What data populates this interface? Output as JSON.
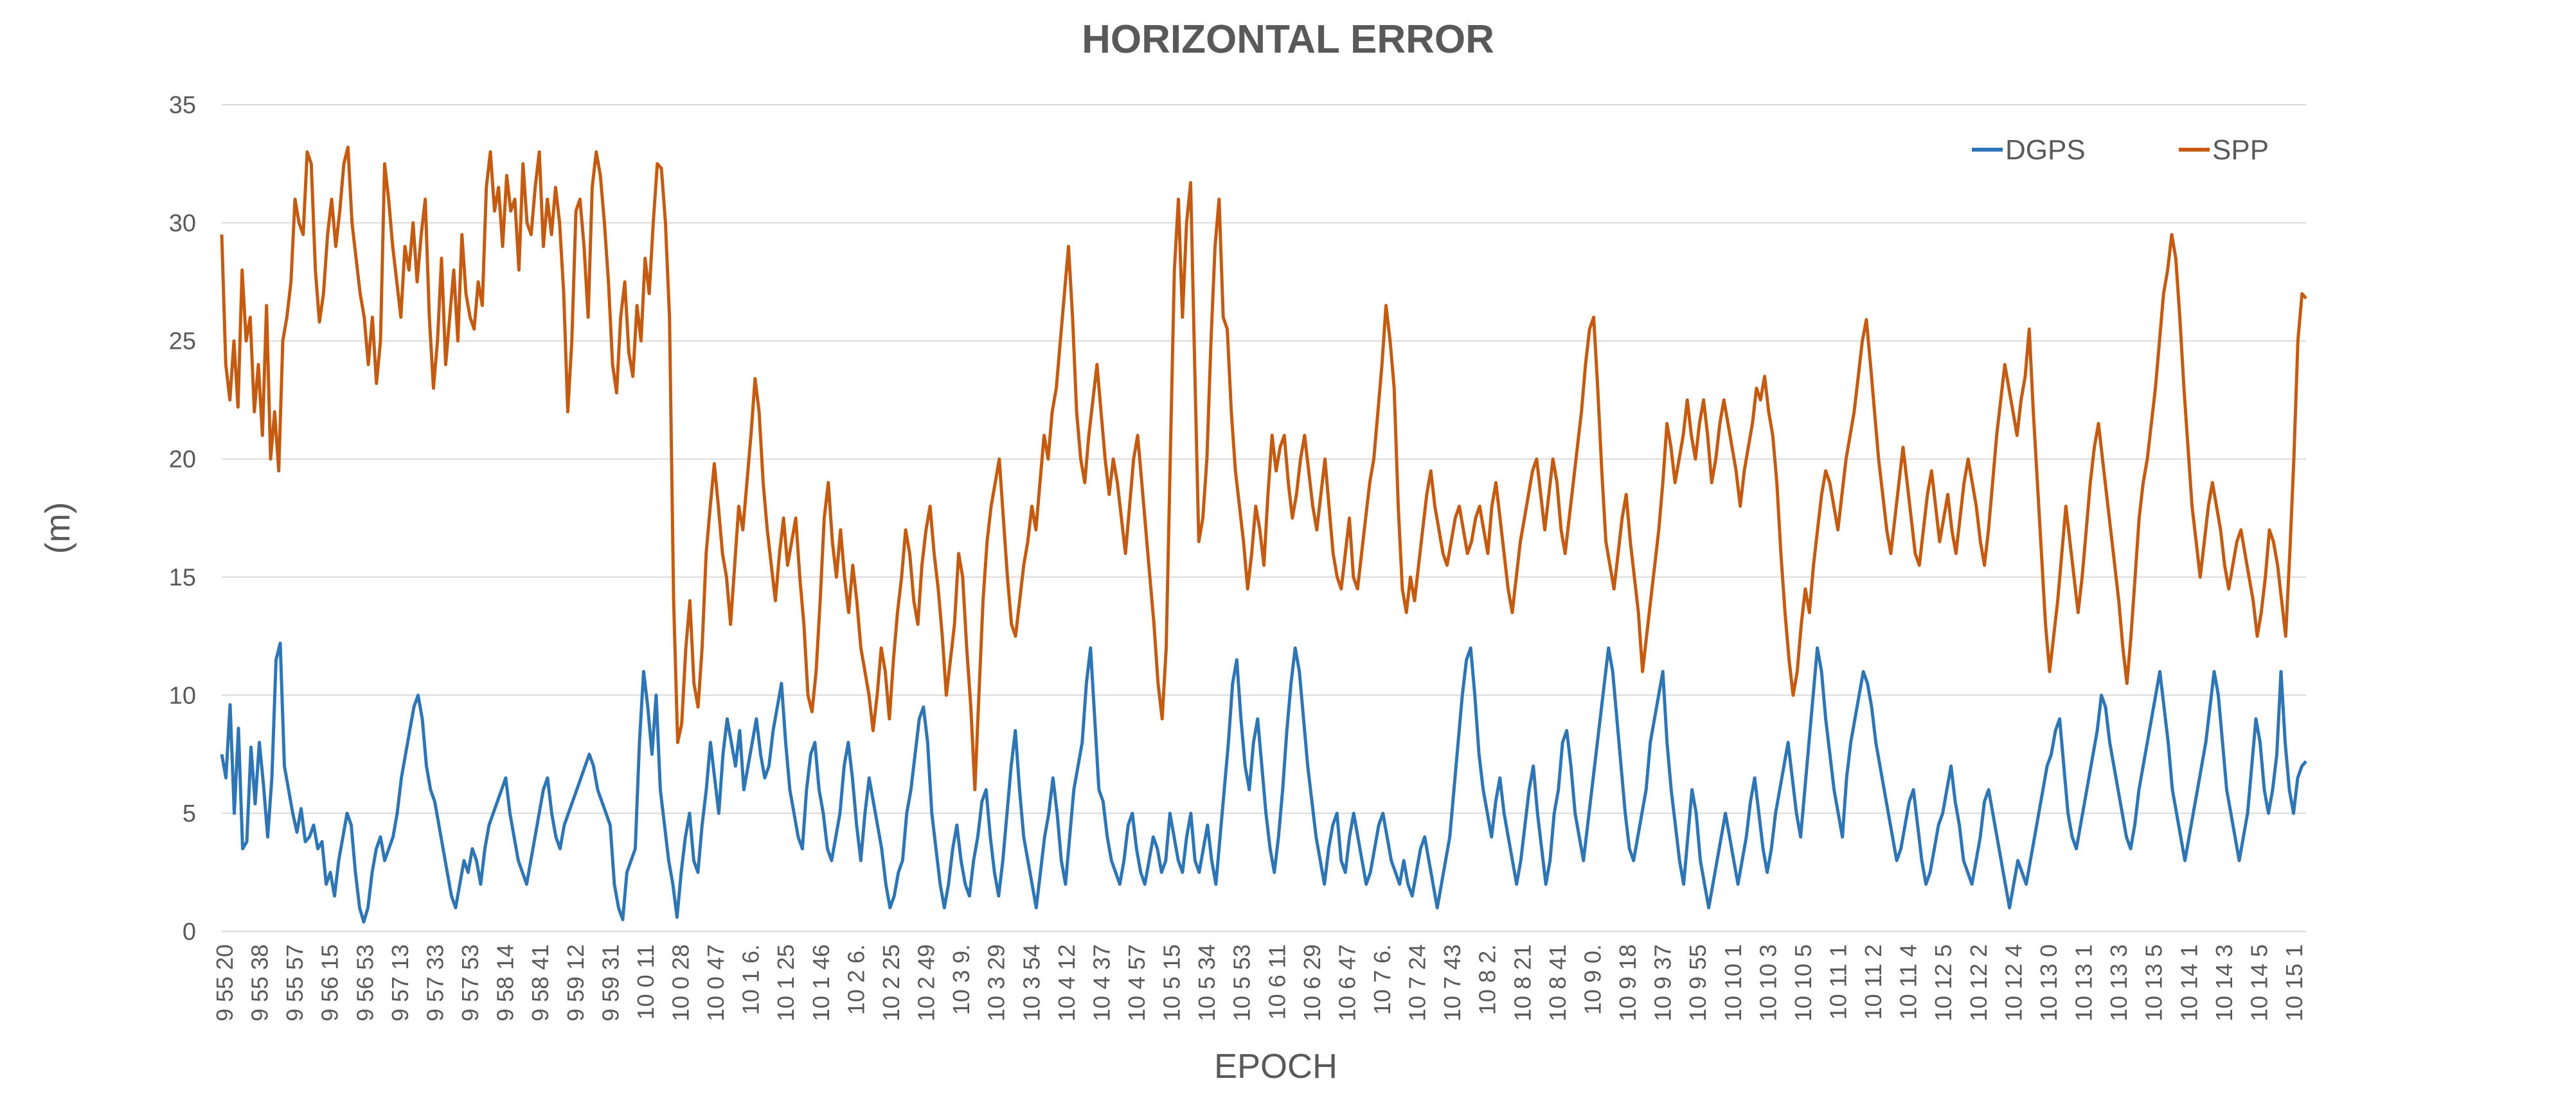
{
  "chart_data": {
    "type": "line",
    "title": "HORIZONTAL ERROR",
    "xlabel": "EPOCH",
    "ylabel": "(m)",
    "ylim": [
      0,
      35
    ],
    "yticks": [
      0,
      5,
      10,
      15,
      20,
      25,
      30,
      35
    ],
    "grid": true,
    "legend_position": "top-right",
    "colors": {
      "DGPS": "#2E75B6",
      "SPP": "#C55A11",
      "grid": "#D9D9D9",
      "text": "#595959"
    },
    "x_tick_labels": [
      "9 55 20",
      "9 55 38",
      "9 55 57",
      "9 56 15",
      "9 56 53",
      "9 57 13",
      "9 57 33",
      "9 57 53",
      "9 58 14",
      "9 58 41",
      "9 59 12",
      "9 59 31",
      "10 0 11",
      "10 0 28",
      "10 0 47",
      "10 1 6.",
      "10 1 25",
      "10 1 46",
      "10 2 6.",
      "10 2 25",
      "10 2 49",
      "10 3 9.",
      "10 3 29",
      "10 3 54",
      "10 4 12",
      "10 4 37",
      "10 4 57",
      "10 5 15",
      "10 5 34",
      "10 5 53",
      "10 6 11",
      "10 6 29",
      "10 6 47",
      "10 7 6.",
      "10 7 24",
      "10 7 43",
      "10 8 2.",
      "10 8 21",
      "10 8 41",
      "10 9 0.",
      "10 9 18",
      "10 9 37",
      "10 9 55",
      "10 10 1",
      "10 10 3",
      "10 10 5",
      "10 11 1",
      "10 11 2",
      "10 11 4",
      "10 12 5",
      "10 12 2",
      "10 12 4",
      "10 13 0",
      "10 13 1",
      "10 13 3",
      "10 13 5",
      "10 14 1",
      "10 14 3",
      "10 14 5",
      "10 15 1"
    ],
    "series": [
      {
        "name": "DGPS",
        "values": [
          7.5,
          6.5,
          9.6,
          5.0,
          8.6,
          3.5,
          3.8,
          7.8,
          5.4,
          8.0,
          6.2,
          4.0,
          6.5,
          11.5,
          12.2,
          7.0,
          6.0,
          5.0,
          4.2,
          5.2,
          3.8,
          4.0,
          4.5,
          3.5,
          3.8,
          2.0,
          2.5,
          1.5,
          3.0,
          4.0,
          5.0,
          4.5,
          2.5,
          1.0,
          0.4,
          1.0,
          2.5,
          3.5,
          4.0,
          3.0,
          3.5,
          4.0,
          5.0,
          6.5,
          7.5,
          8.5,
          9.5,
          10.0,
          9.0,
          7.0,
          6.0,
          5.5,
          4.5,
          3.5,
          2.5,
          1.5,
          1.0,
          2.0,
          3.0,
          2.5,
          3.5,
          3.0,
          2.0,
          3.5,
          4.5,
          5.0,
          5.5,
          6.0,
          6.5,
          5.0,
          4.0,
          3.0,
          2.5,
          2.0,
          3.0,
          4.0,
          5.0,
          6.0,
          6.5,
          5.0,
          4.0,
          3.5,
          4.5,
          5.0,
          5.5,
          6.0,
          6.5,
          7.0,
          7.5,
          7.0,
          6.0,
          5.5,
          5.0,
          4.5,
          2.0,
          1.0,
          0.5,
          2.5,
          3.0,
          3.5,
          8.0,
          11.0,
          9.5,
          7.5,
          10.0,
          6.0,
          4.5,
          3.0,
          2.0,
          0.6,
          2.5,
          4.0,
          5.0,
          3.0,
          2.5,
          4.5,
          6.0,
          8.0,
          6.5,
          5.0,
          7.5,
          9.0,
          8.0,
          7.0,
          8.5,
          6.0,
          7.0,
          8.0,
          9.0,
          7.5,
          6.5,
          7.0,
          8.5,
          9.5,
          10.5,
          8.0,
          6.0,
          5.0,
          4.0,
          3.5,
          6.0,
          7.5,
          8.0,
          6.0,
          5.0,
          3.5,
          3.0,
          4.0,
          5.0,
          7.0,
          8.0,
          6.5,
          4.5,
          3.0,
          5.0,
          6.5,
          5.5,
          4.5,
          3.5,
          2.0,
          1.0,
          1.5,
          2.5,
          3.0,
          5.0,
          6.0,
          7.5,
          9.0,
          9.5,
          8.0,
          5.0,
          3.5,
          2.0,
          1.0,
          2.0,
          3.5,
          4.5,
          3.0,
          2.0,
          1.5,
          3.0,
          4.0,
          5.5,
          6.0,
          4.0,
          2.5,
          1.5,
          3.0,
          5.0,
          7.0,
          8.5,
          6.0,
          4.0,
          3.0,
          2.0,
          1.0,
          2.5,
          4.0,
          5.0,
          6.5,
          5.0,
          3.0,
          2.0,
          4.0,
          6.0,
          7.0,
          8.0,
          10.5,
          12.0,
          9.0,
          6.0,
          5.5,
          4.0,
          3.0,
          2.5,
          2.0,
          3.0,
          4.5,
          5.0,
          3.5,
          2.5,
          2.0,
          3.0,
          4.0,
          3.5,
          2.5,
          3.0,
          5.0,
          4.0,
          3.0,
          2.5,
          4.0,
          5.0,
          3.0,
          2.5,
          3.5,
          4.5,
          3.0,
          2.0,
          4.0,
          6.0,
          8.0,
          10.5,
          11.5,
          9.0,
          7.0,
          6.0,
          8.0,
          9.0,
          7.0,
          5.0,
          3.5,
          2.5,
          4.0,
          6.0,
          8.5,
          10.5,
          12.0,
          11.0,
          9.0,
          7.0,
          5.5,
          4.0,
          3.0,
          2.0,
          3.5,
          4.5,
          5.0,
          3.0,
          2.5,
          4.0,
          5.0,
          4.0,
          3.0,
          2.0,
          2.5,
          3.5,
          4.5,
          5.0,
          4.0,
          3.0,
          2.5,
          2.0,
          3.0,
          2.0,
          1.5,
          2.5,
          3.5,
          4.0,
          3.0,
          2.0,
          1.0,
          2.0,
          3.0,
          4.0,
          6.0,
          8.0,
          10.0,
          11.5,
          12.0,
          10.0,
          7.5,
          6.0,
          5.0,
          4.0,
          5.5,
          6.5,
          5.0,
          4.0,
          3.0,
          2.0,
          3.0,
          4.5,
          6.0,
          7.0,
          5.0,
          3.5,
          2.0,
          3.0,
          5.0,
          6.0,
          8.0,
          8.5,
          7.0,
          5.0,
          4.0,
          3.0,
          4.5,
          6.0,
          7.5,
          9.0,
          10.5,
          12.0,
          11.0,
          9.0,
          7.0,
          5.0,
          3.5,
          3.0,
          4.0,
          5.0,
          6.0,
          8.0,
          9.0,
          10.0,
          11.0,
          8.0,
          6.0,
          4.5,
          3.0,
          2.0,
          4.0,
          6.0,
          5.0,
          3.0,
          2.0,
          1.0,
          2.0,
          3.0,
          4.0,
          5.0,
          4.0,
          3.0,
          2.0,
          3.0,
          4.0,
          5.5,
          6.5,
          5.0,
          3.5,
          2.5,
          3.5,
          5.0,
          6.0,
          7.0,
          8.0,
          6.5,
          5.0,
          4.0,
          6.0,
          8.0,
          10.0,
          12.0,
          11.0,
          9.0,
          7.5,
          6.0,
          5.0,
          4.0,
          6.5,
          8.0,
          9.0,
          10.0,
          11.0,
          10.5,
          9.5,
          8.0,
          7.0,
          6.0,
          5.0,
          4.0,
          3.0,
          3.5,
          4.5,
          5.5,
          6.0,
          4.5,
          3.0,
          2.0,
          2.5,
          3.5,
          4.5,
          5.0,
          6.0,
          7.0,
          5.5,
          4.5,
          3.0,
          2.5,
          2.0,
          3.0,
          4.0,
          5.5,
          6.0,
          5.0,
          4.0,
          3.0,
          2.0,
          1.0,
          2.0,
          3.0,
          2.5,
          2.0,
          3.0,
          4.0,
          5.0,
          6.0,
          7.0,
          7.5,
          8.5,
          9.0,
          7.0,
          5.0,
          4.0,
          3.5,
          4.5,
          5.5,
          6.5,
          7.5,
          8.5,
          10.0,
          9.5,
          8.0,
          7.0,
          6.0,
          5.0,
          4.0,
          3.5,
          4.5,
          6.0,
          7.0,
          8.0,
          9.0,
          10.0,
          11.0,
          9.5,
          8.0,
          6.0,
          5.0,
          4.0,
          3.0,
          4.0,
          5.0,
          6.0,
          7.0,
          8.0,
          9.5,
          11.0,
          10.0,
          8.0,
          6.0,
          5.0,
          4.0,
          3.0,
          4.0,
          5.0,
          7.0,
          9.0,
          8.0,
          6.0,
          5.0,
          6.0,
          7.5,
          11.0,
          8.0,
          6.0,
          5.0,
          6.5,
          7.0,
          7.2
        ]
      },
      {
        "name": "SPP",
        "values": [
          29.5,
          24.0,
          22.5,
          25.0,
          22.2,
          28.0,
          25.0,
          26.0,
          22.0,
          24.0,
          21.0,
          26.5,
          20.0,
          22.0,
          19.5,
          25.0,
          26.0,
          27.5,
          31.0,
          30.0,
          29.5,
          33.0,
          32.5,
          28.0,
          25.8,
          27.0,
          29.5,
          31.0,
          29.0,
          30.5,
          32.5,
          33.2,
          30.0,
          28.5,
          27.0,
          26.0,
          24.0,
          26.0,
          23.2,
          25.0,
          32.5,
          31.0,
          29.0,
          27.5,
          26.0,
          29.0,
          28.0,
          30.0,
          27.5,
          29.5,
          31.0,
          26.0,
          23.0,
          25.0,
          28.5,
          24.0,
          26.0,
          28.0,
          25.0,
          29.5,
          27.0,
          26.0,
          25.5,
          27.5,
          26.5,
          31.5,
          33.0,
          30.5,
          31.5,
          29.0,
          32.0,
          30.5,
          31.0,
          28.0,
          32.5,
          30.0,
          29.5,
          31.5,
          33.0,
          29.0,
          31.0,
          29.5,
          31.5,
          30.0,
          27.0,
          22.0,
          25.0,
          30.5,
          31.0,
          29.0,
          26.0,
          31.5,
          33.0,
          32.0,
          30.0,
          27.5,
          24.0,
          22.8,
          26.0,
          27.5,
          24.5,
          23.5,
          26.5,
          25.0,
          28.5,
          27.0,
          30.0,
          32.5,
          32.3,
          30.0,
          26.0,
          14.0,
          8.0,
          8.8,
          12.0,
          14.0,
          10.5,
          9.5,
          12.0,
          16.0,
          18.0,
          19.8,
          18.0,
          16.0,
          15.0,
          13.0,
          15.5,
          18.0,
          17.0,
          19.0,
          21.0,
          23.4,
          22.0,
          19.0,
          17.0,
          15.5,
          14.0,
          16.0,
          17.5,
          15.5,
          16.5,
          17.5,
          15.0,
          13.0,
          10.0,
          9.3,
          11.0,
          14.0,
          17.5,
          19.0,
          16.5,
          15.0,
          17.0,
          15.0,
          13.5,
          15.5,
          14.0,
          12.0,
          11.0,
          10.0,
          8.5,
          10.0,
          12.0,
          11.0,
          9.0,
          11.5,
          13.5,
          15.0,
          17.0,
          16.0,
          14.0,
          13.0,
          15.5,
          17.0,
          18.0,
          16.0,
          14.5,
          12.5,
          10.0,
          11.5,
          13.0,
          16.0,
          15.0,
          12.0,
          9.5,
          6.0,
          10.0,
          14.0,
          16.5,
          18.0,
          19.0,
          20.0,
          17.5,
          15.0,
          13.0,
          12.5,
          14.0,
          15.5,
          16.5,
          18.0,
          17.0,
          19.0,
          21.0,
          20.0,
          22.0,
          23.0,
          25.0,
          27.0,
          29.0,
          26.0,
          22.0,
          20.0,
          19.0,
          21.0,
          22.5,
          24.0,
          22.0,
          20.0,
          18.5,
          20.0,
          19.0,
          17.5,
          16.0,
          18.0,
          20.0,
          21.0,
          19.0,
          17.0,
          15.0,
          13.0,
          10.5,
          9.0,
          12.0,
          20.0,
          28.0,
          31.0,
          26.0,
          30.0,
          31.7,
          24.0,
          16.5,
          17.5,
          20.0,
          25.0,
          29.0,
          31.0,
          26.0,
          25.5,
          22.0,
          19.5,
          18.0,
          16.5,
          14.5,
          16.0,
          18.0,
          17.0,
          15.5,
          18.5,
          21.0,
          19.5,
          20.5,
          21.0,
          19.0,
          17.5,
          18.5,
          20.0,
          21.0,
          19.5,
          18.0,
          17.0,
          18.5,
          20.0,
          18.0,
          16.0,
          15.0,
          14.5,
          16.0,
          17.5,
          15.0,
          14.5,
          16.0,
          17.5,
          19.0,
          20.0,
          22.0,
          24.0,
          26.5,
          25.0,
          23.0,
          18.0,
          14.5,
          13.5,
          15.0,
          14.0,
          15.5,
          17.0,
          18.5,
          19.5,
          18.0,
          17.0,
          16.0,
          15.5,
          16.5,
          17.5,
          18.0,
          17.0,
          16.0,
          16.5,
          17.5,
          18.0,
          17.0,
          16.0,
          18.0,
          19.0,
          17.5,
          16.0,
          14.5,
          13.5,
          15.0,
          16.5,
          17.5,
          18.5,
          19.5,
          20.0,
          18.5,
          17.0,
          18.5,
          20.0,
          19.0,
          17.0,
          16.0,
          17.5,
          19.0,
          20.5,
          22.0,
          24.0,
          25.5,
          26.0,
          23.0,
          19.5,
          16.5,
          15.5,
          14.5,
          16.0,
          17.5,
          18.5,
          16.5,
          15.0,
          13.5,
          11.0,
          12.5,
          14.0,
          15.5,
          17.0,
          19.0,
          21.5,
          20.5,
          19.0,
          20.0,
          21.0,
          22.5,
          21.0,
          20.0,
          21.5,
          22.5,
          21.0,
          19.0,
          20.0,
          21.5,
          22.5,
          21.5,
          20.5,
          19.5,
          18.0,
          19.5,
          20.5,
          21.5,
          23.0,
          22.5,
          23.5,
          22.0,
          21.0,
          19.0,
          16.0,
          13.5,
          11.5,
          10.0,
          11.0,
          13.0,
          14.5,
          13.5,
          15.5,
          17.0,
          18.5,
          19.5,
          19.0,
          18.0,
          17.0,
          18.5,
          20.0,
          21.0,
          22.0,
          23.5,
          25.0,
          25.9,
          24.0,
          22.0,
          20.0,
          18.5,
          17.0,
          16.0,
          17.5,
          19.0,
          20.5,
          19.0,
          17.5,
          16.0,
          15.5,
          17.0,
          18.5,
          19.5,
          18.0,
          16.5,
          17.5,
          18.5,
          17.0,
          16.0,
          17.5,
          19.0,
          20.0,
          19.0,
          18.0,
          16.5,
          15.5,
          17.0,
          19.0,
          21.0,
          22.5,
          24.0,
          23.0,
          22.0,
          21.0,
          22.5,
          23.5,
          25.5,
          22.0,
          19.0,
          16.0,
          13.0,
          11.0,
          12.5,
          14.0,
          16.0,
          18.0,
          16.5,
          15.0,
          13.5,
          15.0,
          17.0,
          19.0,
          20.5,
          21.5,
          20.0,
          18.5,
          17.0,
          15.5,
          14.0,
          12.0,
          10.5,
          12.5,
          15.0,
          17.5,
          19.0,
          20.0,
          21.5,
          23.0,
          25.0,
          27.0,
          28.0,
          29.5,
          28.5,
          26.0,
          23.0,
          20.5,
          18.0,
          16.5,
          15.0,
          16.5,
          18.0,
          19.0,
          18.0,
          17.0,
          15.5,
          14.5,
          15.5,
          16.5,
          17.0,
          16.0,
          15.0,
          14.0,
          12.5,
          13.5,
          15.0,
          17.0,
          16.5,
          15.5,
          14.0,
          12.5,
          16.0,
          20.0,
          25.0,
          27.0,
          26.8
        ]
      }
    ]
  }
}
